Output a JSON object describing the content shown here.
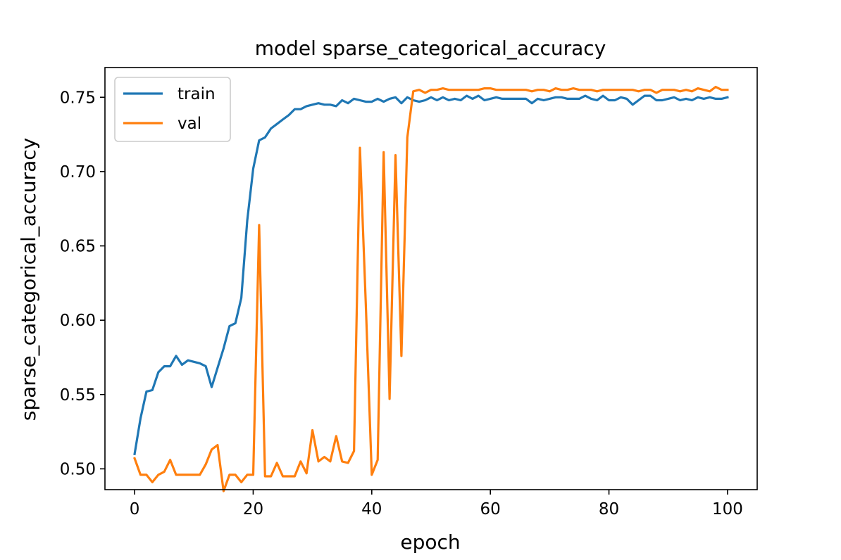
{
  "chart_data": {
    "type": "line",
    "title": "model sparse_categorical_accuracy",
    "xlabel": "epoch",
    "ylabel": "sparse_categorical_accuracy",
    "xlim": [
      -5,
      105
    ],
    "ylim": [
      0.486,
      0.77
    ],
    "xticks": [
      0,
      20,
      40,
      60,
      80,
      100
    ],
    "yticks": [
      0.5,
      0.55,
      0.6,
      0.65,
      0.7,
      0.75
    ],
    "xtick_labels": [
      "0",
      "20",
      "40",
      "60",
      "80",
      "100"
    ],
    "ytick_labels": [
      "0.50",
      "0.55",
      "0.60",
      "0.65",
      "0.70",
      "0.75"
    ],
    "grid": false,
    "legend_position": "upper left",
    "colors": {
      "train": "#1f77b4",
      "val": "#ff7f0e"
    },
    "series": [
      {
        "name": "train",
        "x": [
          0,
          1,
          2,
          3,
          4,
          5,
          6,
          7,
          8,
          9,
          10,
          11,
          12,
          13,
          14,
          15,
          16,
          17,
          18,
          19,
          20,
          21,
          22,
          23,
          24,
          25,
          26,
          27,
          28,
          29,
          30,
          31,
          32,
          33,
          34,
          35,
          36,
          37,
          38,
          39,
          40,
          41,
          42,
          43,
          44,
          45,
          46,
          47,
          48,
          49,
          50,
          51,
          52,
          53,
          54,
          55,
          56,
          57,
          58,
          59,
          60,
          61,
          62,
          63,
          64,
          65,
          66,
          67,
          68,
          69,
          70,
          71,
          72,
          73,
          74,
          75,
          76,
          77,
          78,
          79,
          80,
          81,
          82,
          83,
          84,
          85,
          86,
          87,
          88,
          89,
          90,
          91,
          92,
          93,
          94,
          95,
          96,
          97,
          98,
          99,
          100
        ],
        "values": [
          0.51,
          0.534,
          0.552,
          0.553,
          0.565,
          0.569,
          0.569,
          0.576,
          0.57,
          0.573,
          0.572,
          0.571,
          0.569,
          0.555,
          0.568,
          0.581,
          0.596,
          0.598,
          0.615,
          0.667,
          0.702,
          0.721,
          0.723,
          0.729,
          0.732,
          0.735,
          0.738,
          0.742,
          0.742,
          0.744,
          0.745,
          0.746,
          0.745,
          0.745,
          0.744,
          0.748,
          0.746,
          0.749,
          0.748,
          0.747,
          0.747,
          0.749,
          0.747,
          0.749,
          0.75,
          0.746,
          0.75,
          0.748,
          0.747,
          0.748,
          0.75,
          0.748,
          0.75,
          0.748,
          0.749,
          0.748,
          0.751,
          0.749,
          0.751,
          0.748,
          0.749,
          0.75,
          0.749,
          0.749,
          0.749,
          0.749,
          0.749,
          0.746,
          0.749,
          0.748,
          0.749,
          0.75,
          0.75,
          0.749,
          0.749,
          0.749,
          0.751,
          0.749,
          0.748,
          0.751,
          0.748,
          0.748,
          0.75,
          0.749,
          0.745,
          0.748,
          0.751,
          0.751,
          0.748,
          0.748,
          0.749,
          0.75,
          0.748,
          0.749,
          0.748,
          0.75,
          0.749,
          0.75,
          0.749,
          0.749,
          0.75
        ]
      },
      {
        "name": "val",
        "x": [
          0,
          1,
          2,
          3,
          4,
          5,
          6,
          7,
          8,
          9,
          10,
          11,
          12,
          13,
          14,
          15,
          16,
          17,
          18,
          19,
          20,
          21,
          22,
          23,
          24,
          25,
          26,
          27,
          28,
          29,
          30,
          31,
          32,
          33,
          34,
          35,
          36,
          37,
          38,
          39,
          40,
          41,
          42,
          43,
          44,
          45,
          46,
          47,
          48,
          49,
          50,
          51,
          52,
          53,
          54,
          55,
          56,
          57,
          58,
          59,
          60,
          61,
          62,
          63,
          64,
          65,
          66,
          67,
          68,
          69,
          70,
          71,
          72,
          73,
          74,
          75,
          76,
          77,
          78,
          79,
          80,
          81,
          82,
          83,
          84,
          85,
          86,
          87,
          88,
          89,
          90,
          91,
          92,
          93,
          94,
          95,
          96,
          97,
          98,
          99,
          100
        ],
        "values": [
          0.507,
          0.496,
          0.496,
          0.491,
          0.496,
          0.498,
          0.506,
          0.496,
          0.496,
          0.496,
          0.496,
          0.496,
          0.503,
          0.513,
          0.516,
          0.485,
          0.496,
          0.496,
          0.491,
          0.496,
          0.496,
          0.664,
          0.495,
          0.495,
          0.504,
          0.495,
          0.495,
          0.495,
          0.505,
          0.497,
          0.526,
          0.505,
          0.508,
          0.505,
          0.522,
          0.505,
          0.504,
          0.512,
          0.716,
          0.61,
          0.496,
          0.506,
          0.713,
          0.547,
          0.711,
          0.576,
          0.723,
          0.754,
          0.755,
          0.753,
          0.755,
          0.755,
          0.756,
          0.755,
          0.755,
          0.755,
          0.755,
          0.755,
          0.755,
          0.756,
          0.756,
          0.755,
          0.755,
          0.755,
          0.755,
          0.755,
          0.755,
          0.754,
          0.755,
          0.755,
          0.754,
          0.756,
          0.755,
          0.755,
          0.756,
          0.755,
          0.755,
          0.755,
          0.754,
          0.755,
          0.755,
          0.755,
          0.755,
          0.755,
          0.755,
          0.754,
          0.755,
          0.755,
          0.753,
          0.755,
          0.755,
          0.755,
          0.754,
          0.755,
          0.754,
          0.756,
          0.755,
          0.754,
          0.757,
          0.755,
          0.755
        ]
      }
    ]
  }
}
